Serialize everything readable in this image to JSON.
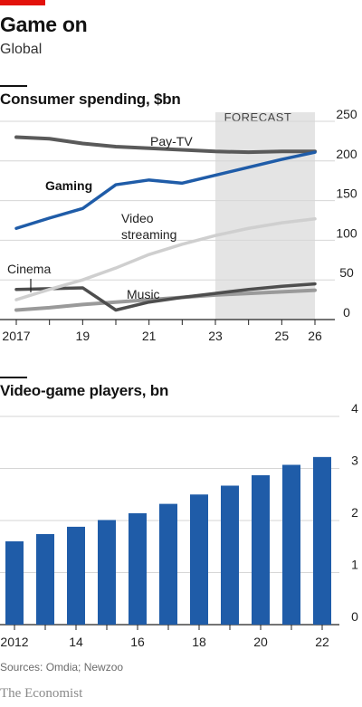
{
  "header": {
    "title": "Game on",
    "subtitle": "Global"
  },
  "chart_data": [
    {
      "type": "line",
      "title": "Consumer spending, $bn",
      "x": [
        2017,
        2018,
        2019,
        2020,
        2021,
        2022,
        2023,
        2024,
        2025,
        2026
      ],
      "x_ticks": [
        "2017",
        "19",
        "21",
        "23",
        "25",
        "26"
      ],
      "x_tick_values": [
        2017,
        2019,
        2021,
        2023,
        2025,
        2026
      ],
      "ylim": [
        0,
        250
      ],
      "y_ticks": [
        "0",
        "50",
        "100",
        "150",
        "200",
        "250"
      ],
      "y_tick_values": [
        0,
        50,
        100,
        150,
        200,
        250
      ],
      "forecast_label": "FORECAST",
      "forecast_range": [
        2023,
        2026
      ],
      "series": [
        {
          "name": "Pay-TV",
          "color": "#5a5a5a",
          "values": [
            230,
            228,
            222,
            218,
            216,
            214,
            212,
            211,
            212,
            212
          ]
        },
        {
          "name": "Gaming",
          "color": "#1f5ca8",
          "values": [
            115,
            128,
            140,
            170,
            176,
            172,
            182,
            192,
            202,
            211
          ]
        },
        {
          "name": "Video streaming",
          "color": "#cfcfcf",
          "values": [
            25,
            38,
            50,
            65,
            82,
            95,
            106,
            115,
            122,
            127
          ]
        },
        {
          "name": "Cinema",
          "color": "#4e4e4e",
          "values": [
            38,
            39,
            40,
            12,
            22,
            28,
            33,
            38,
            42,
            45
          ]
        },
        {
          "name": "Music",
          "color": "#9a9a9a",
          "values": [
            12,
            15,
            19,
            22,
            25,
            28,
            31,
            33,
            35,
            37
          ]
        }
      ],
      "labels": {
        "pay_tv": "Pay-TV",
        "gaming": "Gaming",
        "video_line1": "Video",
        "video_line2": "streaming",
        "cinema": "Cinema",
        "music": "Music"
      }
    },
    {
      "type": "bar",
      "title": "Video-game players, bn",
      "categories": [
        "2012",
        "2013",
        "2014",
        "2015",
        "2016",
        "2017",
        "2018",
        "2019",
        "2020",
        "2021",
        "2022"
      ],
      "x_ticks": [
        "2012",
        "14",
        "16",
        "18",
        "20",
        "22"
      ],
      "x_tick_indices": [
        0,
        2,
        4,
        6,
        8,
        10
      ],
      "values": [
        1.6,
        1.74,
        1.88,
        2.01,
        2.14,
        2.32,
        2.5,
        2.67,
        2.87,
        3.07,
        3.22
      ],
      "ylim": [
        0,
        4
      ],
      "y_ticks": [
        "0",
        "1",
        "2",
        "3",
        "4"
      ],
      "y_tick_values": [
        0,
        1,
        2,
        3,
        4
      ],
      "color": "#1f5ca8"
    }
  ],
  "footer": {
    "source": "Sources: Omdia; Newzoo",
    "brand": "The Economist"
  }
}
